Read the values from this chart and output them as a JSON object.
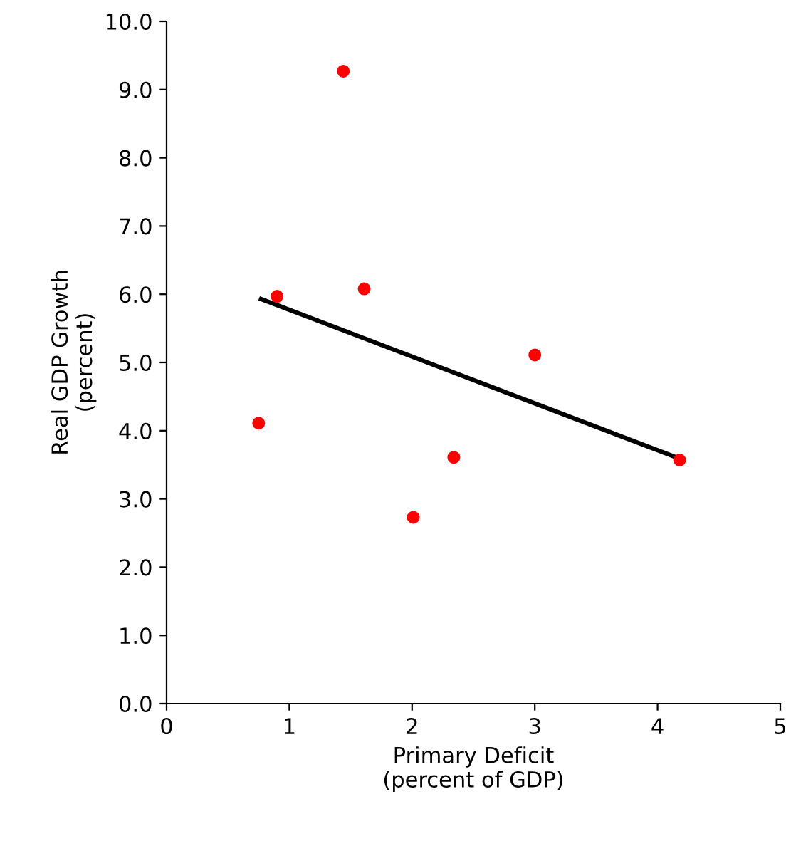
{
  "chart_data": {
    "type": "scatter",
    "xlabel": "Primary Deficit\n(percent of GDP)",
    "ylabel": "Real GDP Growth\n(percent)",
    "xlim": [
      0,
      5
    ],
    "xticks": [
      0,
      1,
      2,
      3,
      4,
      5
    ],
    "ylim": [
      0,
      10
    ],
    "yticks": [
      {
        "value": 0,
        "label": "0.0"
      },
      {
        "value": 1,
        "label": "1.0"
      },
      {
        "value": 2,
        "label": "2.0"
      },
      {
        "value": 3,
        "label": "3.0"
      },
      {
        "value": 4,
        "label": "4.0"
      },
      {
        "value": 5,
        "label": "5.0"
      },
      {
        "value": 6,
        "label": "6.0"
      },
      {
        "value": 7,
        "label": "7.0"
      },
      {
        "value": 8,
        "label": "8.0"
      },
      {
        "value": 9,
        "label": "9.0"
      },
      {
        "value": 10,
        "label": "10.0"
      }
    ],
    "grid": false,
    "legend": false,
    "marker": "circle",
    "series": [
      {
        "color": "#ff0000",
        "x": [
          1.44,
          0.9,
          1.61,
          0.75,
          3.0,
          2.34,
          2.01,
          4.18
        ],
        "values": [
          9.27,
          5.97,
          6.08,
          4.11,
          5.11,
          3.61,
          2.73,
          3.57
        ]
      },
      {
        "type": "line",
        "color": "#000000",
        "line_style": "solid",
        "marker": "none",
        "x": [
          0.77,
          4.18
        ],
        "values": [
          5.93,
          3.59
        ]
      }
    ]
  }
}
